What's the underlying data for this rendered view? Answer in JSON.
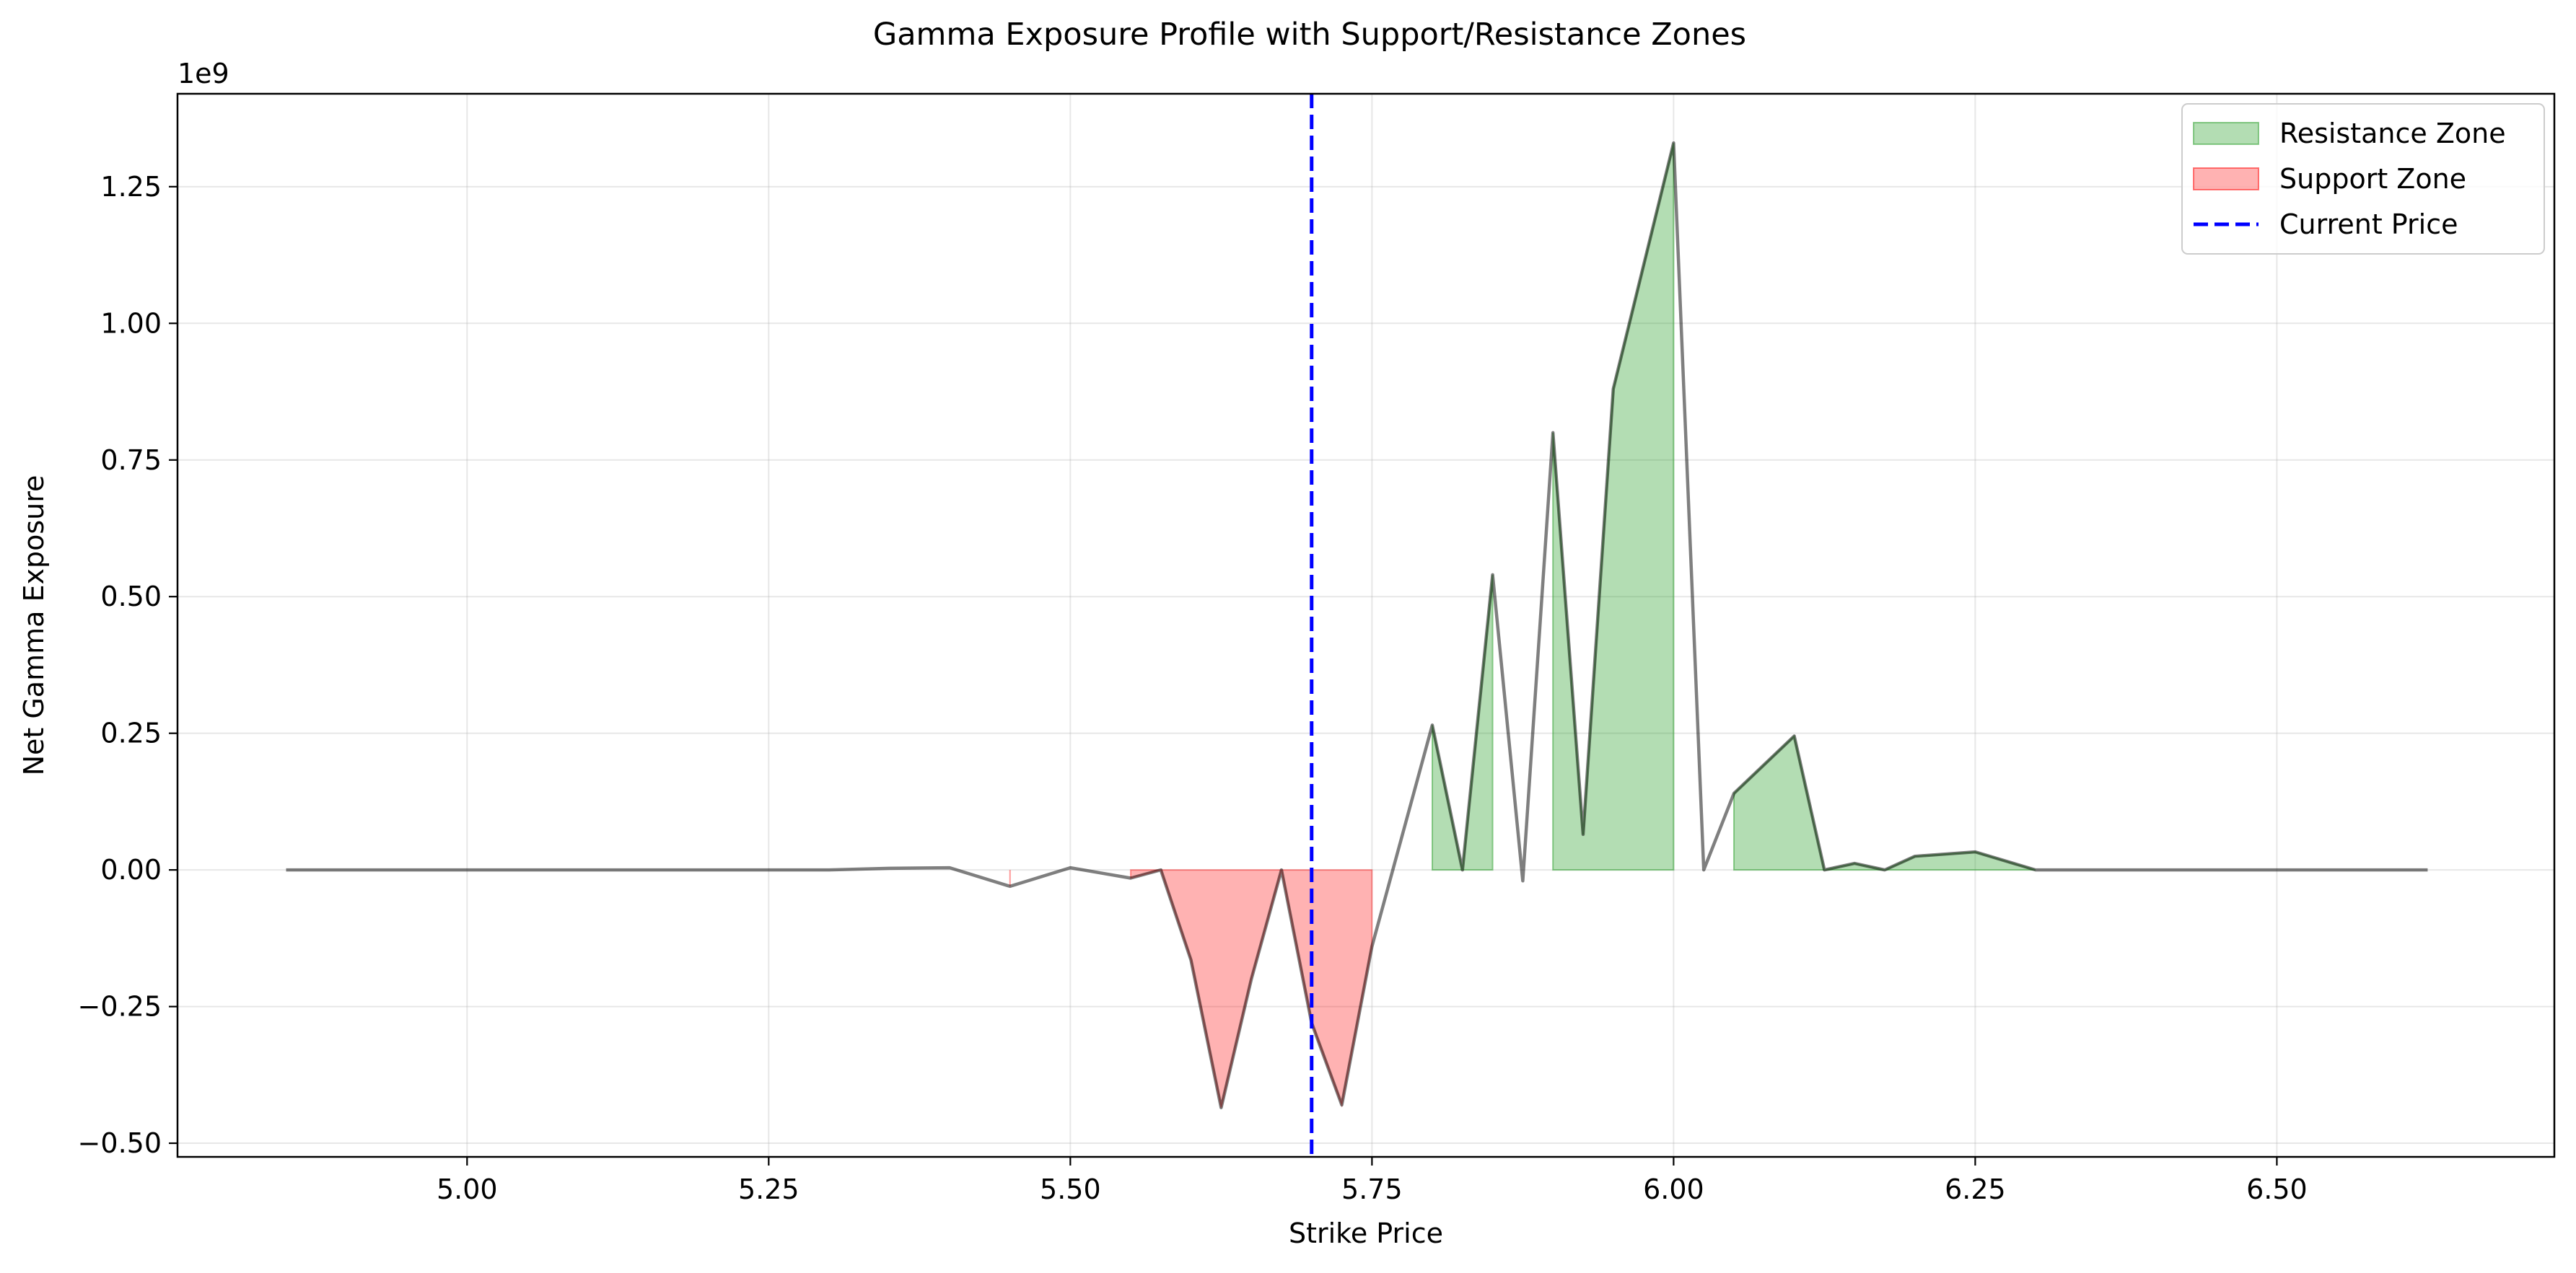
{
  "chart_data": {
    "type": "area",
    "title": "Gamma Exposure Profile with Support/Resistance Zones",
    "xlabel": "Strike Price",
    "ylabel": "Net Gamma Exposure",
    "y_offset_text": "1e9",
    "xlim": [
      4.76,
      6.73
    ],
    "ylim": [
      -0.525,
      1.42
    ],
    "y_scale": 1000000000,
    "xticks": [
      5.0,
      5.25,
      5.5,
      5.75,
      6.0,
      6.25,
      6.5
    ],
    "xtick_labels": [
      "5.00",
      "5.25",
      "5.50",
      "5.75",
      "6.00",
      "6.25",
      "6.50"
    ],
    "yticks": [
      -0.5,
      -0.25,
      0.0,
      0.25,
      0.5,
      0.75,
      1.0,
      1.25
    ],
    "ytick_labels": [
      "−0.50",
      "−0.25",
      "0.00",
      "0.25",
      "0.50",
      "0.75",
      "1.00",
      "1.25"
    ],
    "grid": true,
    "legend_position": "top-right",
    "current_price": 5.7,
    "x": [
      4.85,
      5.1,
      5.3,
      5.35,
      5.4,
      5.45,
      5.5,
      5.55,
      5.575,
      5.6,
      5.625,
      5.65,
      5.675,
      5.7,
      5.725,
      5.75,
      5.8,
      5.825,
      5.85,
      5.875,
      5.9,
      5.925,
      5.95,
      6.0,
      6.025,
      6.05,
      6.1,
      6.125,
      6.15,
      6.175,
      6.2,
      6.25,
      6.3,
      6.4,
      6.625
    ],
    "y": [
      0.0,
      0.0,
      0.0,
      0.003,
      0.004,
      -0.03,
      0.004,
      -0.015,
      0.0,
      -0.165,
      -0.435,
      -0.2,
      0.0,
      -0.28,
      -0.43,
      -0.14,
      0.265,
      0.0,
      0.54,
      -0.02,
      0.8,
      0.065,
      0.88,
      1.33,
      0.0,
      0.14,
      0.245,
      0.0,
      0.012,
      0.0,
      0.025,
      0.033,
      0.0,
      0.0,
      0.0
    ],
    "resistance_zones": [
      [
        5.8,
        5.85
      ],
      [
        5.9,
        6.0
      ],
      [
        6.05,
        6.3
      ]
    ],
    "support_zones": [
      [
        5.45,
        5.45
      ],
      [
        5.55,
        5.75
      ]
    ],
    "series": [
      {
        "name": "Resistance Zone",
        "color": "#2ca02c"
      },
      {
        "name": "Support Zone",
        "color": "#ff0000"
      },
      {
        "name": "Current Price",
        "color": "#0000ff"
      }
    ],
    "line_color": "#000000"
  }
}
